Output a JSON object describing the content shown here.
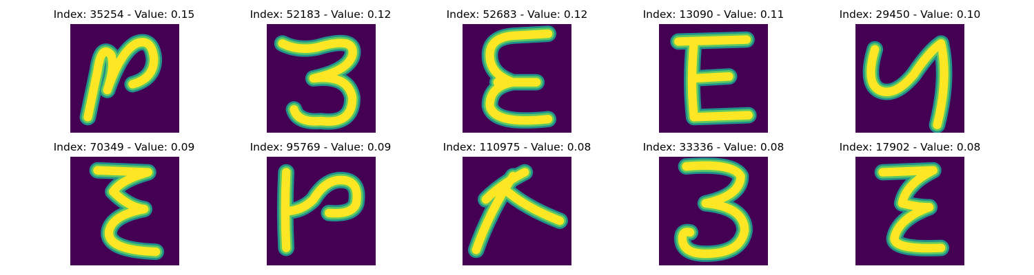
{
  "colors": {
    "background": "#440154",
    "stroke_edge": "#21918c",
    "stroke_mid": "#5ec962",
    "stroke_core": "#fde725"
  },
  "panels": [
    {
      "title": "Index: 35254 - Value: 0.15",
      "glyph": "glyph-n-shape"
    },
    {
      "title": "Index: 52183 - Value: 0.12",
      "glyph": "glyph-3-shape"
    },
    {
      "title": "Index: 52683 - Value: 0.12",
      "glyph": "glyph-epsilon-shape"
    },
    {
      "title": "Index: 13090 - Value: 0.11",
      "glyph": "glyph-E-shape"
    },
    {
      "title": "Index: 29450 - Value: 0.10",
      "glyph": "glyph-y-shape"
    },
    {
      "title": "Index: 70349 - Value: 0.09",
      "glyph": "glyph-epsilon-shape"
    },
    {
      "title": "Index: 95769 - Value: 0.09",
      "glyph": "glyph-h-shape"
    },
    {
      "title": "Index: 110975 - Value: 0.08",
      "glyph": "glyph-lambda-shape"
    },
    {
      "title": "Index: 33336 - Value: 0.08",
      "glyph": "glyph-3-shape"
    },
    {
      "title": "Index: 17902 - Value: 0.08",
      "glyph": "glyph-epsilon-shape"
    }
  ]
}
